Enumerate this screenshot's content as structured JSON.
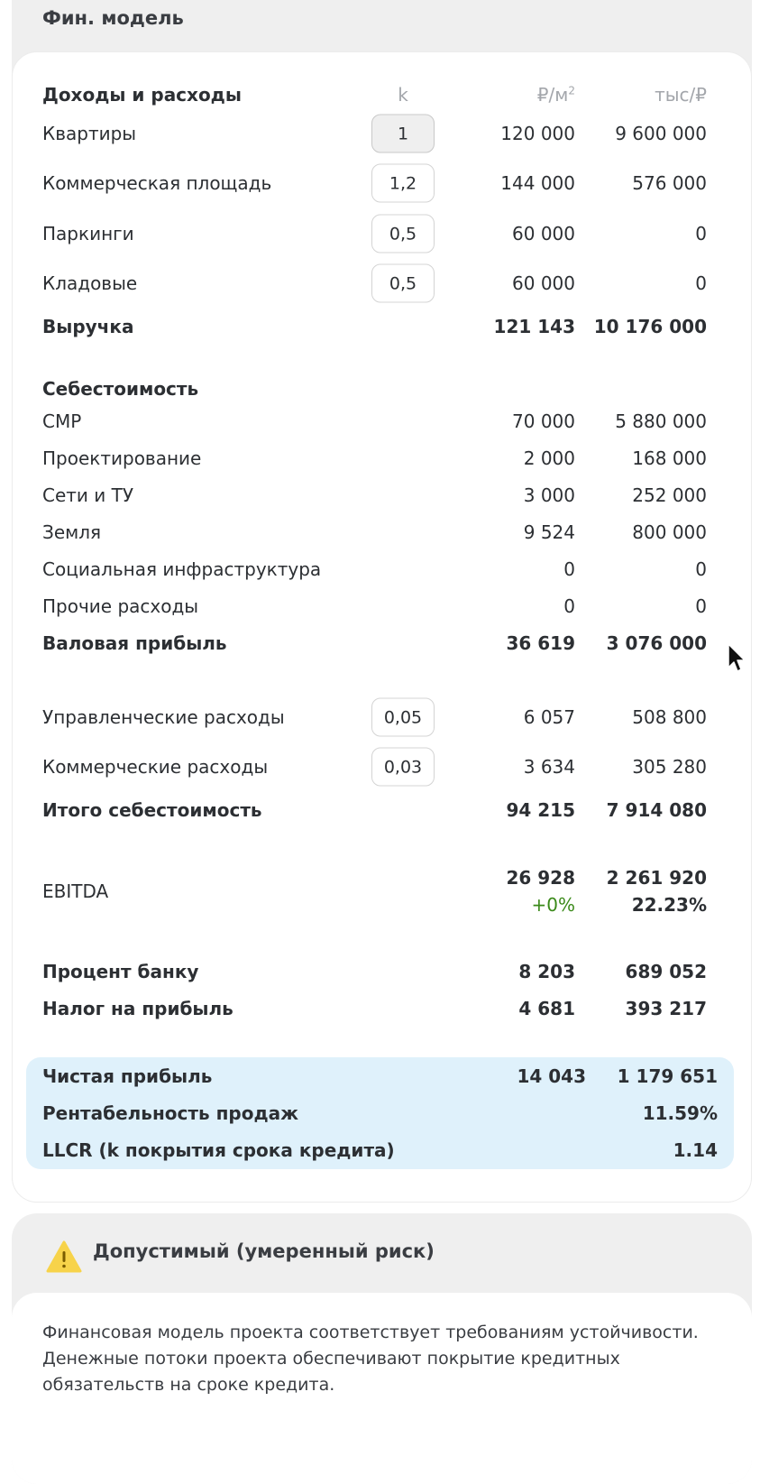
{
  "fin_model": {
    "title": "Фин. модель",
    "header": {
      "label": "Доходы и расходы",
      "k": "k",
      "per_m2_unit": "₽/м",
      "per_m2_sup": "2",
      "total_unit": "тыс/₽"
    },
    "income_rows": [
      {
        "label": "Квартиры",
        "k": "1",
        "per_m2": "120 000",
        "total": "9 600 000"
      },
      {
        "label": "Коммерческая площадь",
        "k": "1,2",
        "per_m2": "144 000",
        "total": "576 000"
      },
      {
        "label": "Паркинги",
        "k": "0,5",
        "per_m2": "60 000",
        "total": "0"
      },
      {
        "label": "Кладовые",
        "k": "0,5",
        "per_m2": "60 000",
        "total": "0"
      }
    ],
    "revenue": {
      "label": "Выручка",
      "per_m2": "121 143",
      "total": "10 176 000"
    },
    "cost_header": "Себестоимость",
    "cost_rows": [
      {
        "label": "СМР",
        "per_m2": "70 000",
        "total": "5 880 000"
      },
      {
        "label": "Проектирование",
        "per_m2": "2 000",
        "total": "168 000"
      },
      {
        "label": "Сети и ТУ",
        "per_m2": "3 000",
        "total": "252 000"
      },
      {
        "label": "Земля",
        "per_m2": "9 524",
        "total": "800 000"
      },
      {
        "label": "Социальная инфраструктура",
        "per_m2": "0",
        "total": "0"
      },
      {
        "label": "Прочие расходы",
        "per_m2": "0",
        "total": "0"
      }
    ],
    "gross_profit": {
      "label": "Валовая прибыль",
      "per_m2": "36 619",
      "total": "3 076 000"
    },
    "expense_rows": [
      {
        "label": "Управленческие расходы",
        "k": "0,05",
        "per_m2": "6 057",
        "total": "508 800"
      },
      {
        "label": "Коммерческие расходы",
        "k": "0,03",
        "per_m2": "3 634",
        "total": "305 280"
      }
    ],
    "total_cost": {
      "label": "Итого себестоимость",
      "per_m2": "94 215",
      "total": "7 914 080"
    },
    "ebitda": {
      "label": "EBITDA",
      "per_m2": "26 928",
      "per_m2_delta": "+0%",
      "total": "2 261 920",
      "total_pct": "22.23%"
    },
    "bank_interest": {
      "label": "Процент банку",
      "per_m2": "8 203",
      "total": "689 052"
    },
    "income_tax": {
      "label": "Налог на прибыль",
      "per_m2": "4 681",
      "total": "393 217"
    },
    "net_profit": {
      "label": "Чистая прибыль",
      "per_m2": "14 043",
      "total": "1 179 651"
    },
    "sales_margin": {
      "label": "Рентабельность продаж",
      "value": "11.59%"
    },
    "llcr": {
      "label": "LLCR (k покрытия срока кредита)",
      "value": "1.14"
    }
  },
  "risk": {
    "icon": "warning-icon",
    "title": "Допустимый (умеренный риск)",
    "text": "Финансовая модель проекта соответствует требованиям устойчивости. Денежные потоки проекта обеспечивают покрытие кредитных обязательств на сроке кредита."
  },
  "colors": {
    "accent_positive": "#3b8a1a",
    "highlight_bg": "#dff1fb",
    "warning": "#f7d34a"
  }
}
